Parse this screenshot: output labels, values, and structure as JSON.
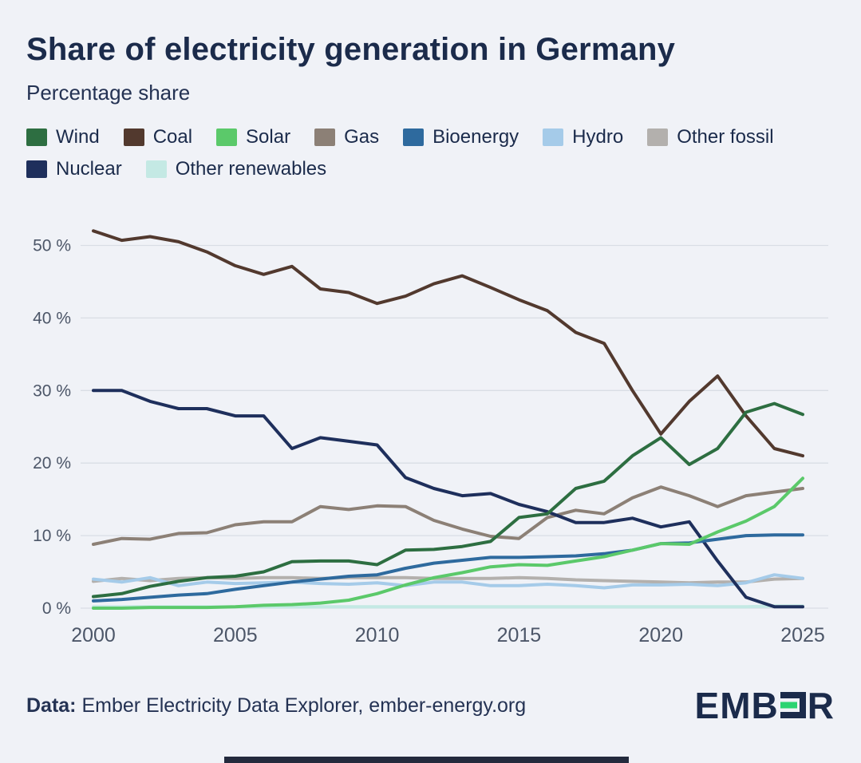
{
  "header": {
    "title": "Share of electricity generation in Germany",
    "subtitle": "Percentage share"
  },
  "footer": {
    "data_label": "Data:",
    "data_text": "Ember Electricity Data Explorer, ember-energy.org",
    "logo_left": "EMB",
    "logo_right": "R",
    "logo_reversed_e_icon": "reversed-e-with-green-bar"
  },
  "theme": {
    "background": "#f0f2f7",
    "title_color": "#1b2b4b",
    "subtitle_color": "#243253",
    "axis_text": "#4c5668",
    "grid": "#d9dde5",
    "logo_text": "#1b2b4b",
    "logo_accent": "#2bd472",
    "bottom_bar": "#232a3d"
  },
  "chart_data": {
    "type": "line",
    "title": "Share of electricity generation in Germany",
    "ylabel": "Percentage share",
    "xlabel": "",
    "grid": true,
    "legend_position": "top",
    "ylim": [
      0,
      55
    ],
    "yticks": [
      0,
      10,
      20,
      30,
      40,
      50
    ],
    "ytick_suffix": " %",
    "xticks": [
      2000,
      2005,
      2010,
      2015,
      2020,
      2025
    ],
    "x": [
      2000,
      2001,
      2002,
      2003,
      2004,
      2005,
      2006,
      2007,
      2008,
      2009,
      2010,
      2011,
      2012,
      2013,
      2014,
      2015,
      2016,
      2017,
      2018,
      2019,
      2020,
      2021,
      2022,
      2023,
      2024,
      2025
    ],
    "series": [
      {
        "name": "Wind",
        "color": "#2d6e41",
        "values": [
          1.6,
          2.0,
          3.0,
          3.7,
          4.2,
          4.4,
          5.0,
          6.4,
          6.5,
          6.5,
          6.0,
          8.0,
          8.1,
          8.5,
          9.2,
          12.5,
          13.0,
          16.5,
          17.5,
          21.0,
          23.5,
          19.8,
          22.0,
          27.0,
          28.2,
          26.7
        ]
      },
      {
        "name": "Coal",
        "color": "#52392e",
        "values": [
          52.0,
          50.7,
          51.2,
          50.5,
          49.1,
          47.2,
          46.0,
          47.1,
          44.0,
          43.5,
          42.0,
          43.0,
          44.7,
          45.8,
          44.2,
          42.5,
          41.0,
          38.0,
          36.5,
          30.0,
          24.0,
          28.5,
          32.0,
          26.5,
          22.0,
          21.0
        ]
      },
      {
        "name": "Solar",
        "color": "#5bc96a",
        "values": [
          0.0,
          0.0,
          0.1,
          0.1,
          0.1,
          0.2,
          0.4,
          0.5,
          0.7,
          1.1,
          2.0,
          3.2,
          4.2,
          4.9,
          5.7,
          6.0,
          5.9,
          6.5,
          7.1,
          8.0,
          8.9,
          8.8,
          10.5,
          12.0,
          14.0,
          17.9
        ]
      },
      {
        "name": "Gas",
        "color": "#8c8076",
        "values": [
          8.8,
          9.6,
          9.5,
          10.3,
          10.4,
          11.5,
          11.9,
          11.9,
          14.0,
          13.6,
          14.1,
          14.0,
          12.1,
          10.9,
          9.9,
          9.6,
          12.5,
          13.5,
          13.0,
          15.2,
          16.7,
          15.5,
          14.0,
          15.5,
          16.0,
          16.5
        ]
      },
      {
        "name": "Bioenergy",
        "color": "#2e6a9e",
        "values": [
          1.0,
          1.2,
          1.5,
          1.8,
          2.0,
          2.6,
          3.1,
          3.6,
          4.0,
          4.4,
          4.6,
          5.5,
          6.2,
          6.6,
          7.0,
          7.0,
          7.1,
          7.2,
          7.5,
          8.0,
          8.9,
          9.0,
          9.5,
          10.0,
          10.1,
          10.1
        ]
      },
      {
        "name": "Hydro",
        "color": "#a5cbe9",
        "values": [
          4.0,
          3.6,
          4.2,
          3.1,
          3.6,
          3.4,
          3.5,
          3.6,
          3.4,
          3.3,
          3.5,
          3.1,
          3.6,
          3.6,
          3.1,
          3.1,
          3.3,
          3.1,
          2.8,
          3.2,
          3.2,
          3.3,
          3.1,
          3.5,
          4.6,
          4.1
        ]
      },
      {
        "name": "Other fossil",
        "color": "#b3b0ad",
        "values": [
          3.7,
          4.1,
          3.8,
          4.1,
          4.2,
          4.1,
          4.2,
          4.2,
          4.1,
          4.2,
          4.2,
          4.2,
          4.1,
          4.1,
          4.1,
          4.2,
          4.1,
          3.9,
          3.8,
          3.7,
          3.6,
          3.5,
          3.6,
          3.6,
          4.0,
          4.1
        ]
      },
      {
        "name": "Nuclear",
        "color": "#1e2f5c",
        "values": [
          30.0,
          30.0,
          28.5,
          27.5,
          27.5,
          26.5,
          26.5,
          22.0,
          23.5,
          23.0,
          22.5,
          18.0,
          16.5,
          15.5,
          15.8,
          14.3,
          13.3,
          11.8,
          11.8,
          12.4,
          11.2,
          11.9,
          6.5,
          1.5,
          0.2,
          0.2
        ]
      },
      {
        "name": "Other renewables",
        "color": "#c4e9e4",
        "values": [
          0.2,
          0.2,
          0.2,
          0.2,
          0.2,
          0.2,
          0.2,
          0.2,
          0.2,
          0.2,
          0.2,
          0.2,
          0.2,
          0.2,
          0.2,
          0.2,
          0.2,
          0.2,
          0.2,
          0.2,
          0.2,
          0.2,
          0.2,
          0.2,
          0.3,
          0.3
        ]
      }
    ],
    "draw_order": [
      "Other renewables",
      "Other fossil",
      "Hydro",
      "Gas",
      "Nuclear",
      "Coal",
      "Bioenergy",
      "Solar",
      "Wind"
    ]
  }
}
